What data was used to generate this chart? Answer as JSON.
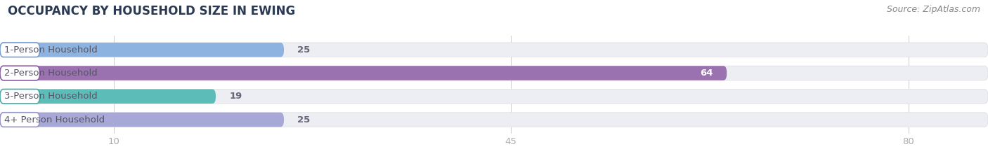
{
  "title": "OCCUPANCY BY HOUSEHOLD SIZE IN EWING",
  "source": "Source: ZipAtlas.com",
  "categories": [
    "1-Person Household",
    "2-Person Household",
    "3-Person Household",
    "4+ Person Household"
  ],
  "values": [
    25,
    64,
    19,
    25
  ],
  "bar_colors": [
    "#8db3e0",
    "#9b72b0",
    "#5bbcb8",
    "#a8a8d8"
  ],
  "bar_bg_color": "#ededf4",
  "bar_border_colors": [
    "#7a9fcf",
    "#8860a0",
    "#48a9a6",
    "#9595c8"
  ],
  "xlim_max": 87,
  "xticks": [
    10,
    45,
    80
  ],
  "title_fontsize": 12,
  "label_fontsize": 9.5,
  "value_fontsize": 9.5,
  "source_fontsize": 9,
  "bar_height": 0.62,
  "label_color": "#555566",
  "value_color_inside": "#ffffff",
  "value_color_outside": "#666677",
  "tick_color": "#aaaaaa",
  "grid_color": "#cccccc"
}
